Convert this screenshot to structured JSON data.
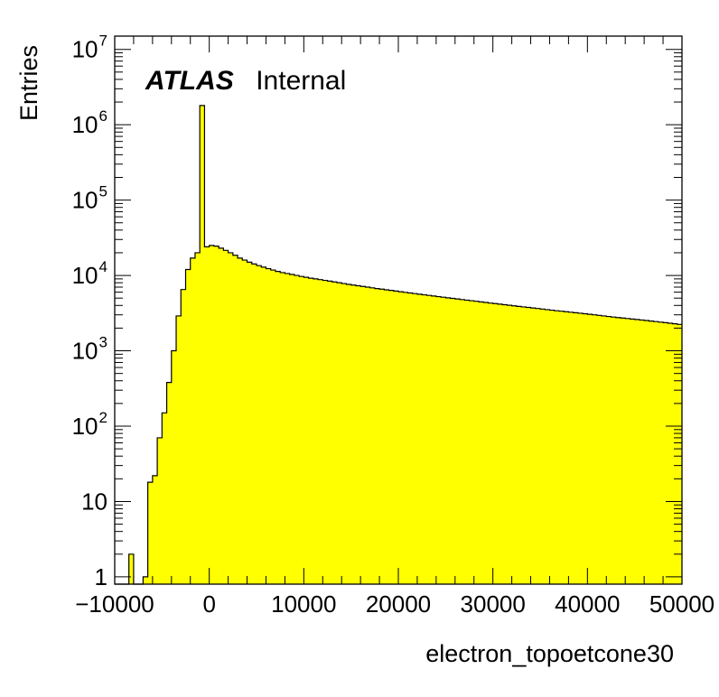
{
  "chart_data": {
    "type": "histogram",
    "title": "",
    "xlabel": "electron_topoetcone30",
    "ylabel": "Entries",
    "xlim": [
      -10000,
      50000
    ],
    "ylim": [
      0.8,
      15000000
    ],
    "log_y": true,
    "grid": false,
    "fill_color": "#ffff00",
    "line_color": "#000000",
    "annotation": {
      "bold_italic": "ATLAS",
      "normal": "Internal"
    },
    "x_ticks": [
      {
        "value": -10000,
        "label": "−10000"
      },
      {
        "value": 0,
        "label": "0"
      },
      {
        "value": 10000,
        "label": "10000"
      },
      {
        "value": 20000,
        "label": "20000"
      },
      {
        "value": 30000,
        "label": "30000"
      },
      {
        "value": 40000,
        "label": "40000"
      },
      {
        "value": 50000,
        "label": "50000"
      }
    ],
    "y_ticks": [
      {
        "value": 1,
        "base": "1",
        "exp": ""
      },
      {
        "value": 10,
        "base": "10",
        "exp": ""
      },
      {
        "value": 100,
        "base": "10",
        "exp": "2"
      },
      {
        "value": 1000,
        "base": "10",
        "exp": "3"
      },
      {
        "value": 10000,
        "base": "10",
        "exp": "4"
      },
      {
        "value": 100000,
        "base": "10",
        "exp": "5"
      },
      {
        "value": 1000000,
        "base": "10",
        "exp": "6"
      },
      {
        "value": 10000000,
        "base": "10",
        "exp": "7"
      }
    ],
    "bins": {
      "start": -10000,
      "width": 500,
      "values": [
        0,
        0,
        0,
        2,
        0,
        0,
        1,
        18,
        22,
        70,
        150,
        380,
        1000,
        2900,
        6500,
        12000,
        17000,
        20000,
        1800000,
        24000,
        25000,
        24500,
        23000,
        21500,
        20000,
        18500,
        17000,
        16000,
        15000,
        14200,
        13500,
        12900,
        12300,
        11800,
        11300,
        10900,
        10600,
        10300,
        10000,
        9700,
        9450,
        9200,
        9000,
        8800,
        8600,
        8400,
        8200,
        8000,
        7800,
        7600,
        7450,
        7300,
        7150,
        7000,
        6850,
        6700,
        6580,
        6450,
        6330,
        6200,
        6080,
        5960,
        5850,
        5740,
        5630,
        5530,
        5430,
        5330,
        5230,
        5140,
        5050,
        4960,
        4870,
        4780,
        4700,
        4620,
        4540,
        4460,
        4380,
        4300,
        4230,
        4160,
        4090,
        4020,
        3950,
        3880,
        3820,
        3760,
        3700,
        3640,
        3580,
        3520,
        3460,
        3400,
        3350,
        3300,
        3250,
        3200,
        3150,
        3100,
        3050,
        3000,
        2950,
        2900,
        2850,
        2800,
        2760,
        2720,
        2680,
        2640,
        2600,
        2560,
        2520,
        2480,
        2440,
        2400,
        2360,
        2320,
        2280,
        2240
      ]
    }
  }
}
